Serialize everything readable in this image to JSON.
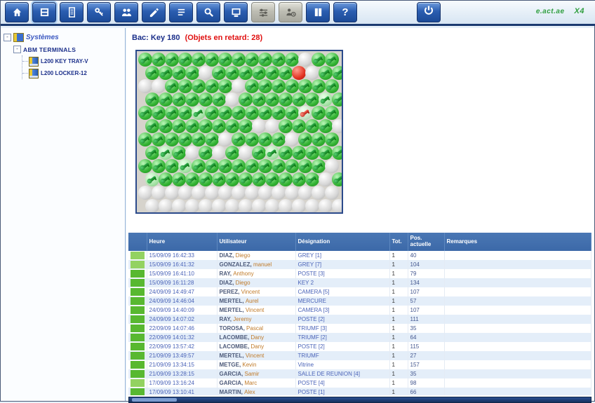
{
  "header": {
    "brand_left": "e.act.ae",
    "brand_right": "X4"
  },
  "toolbar": {
    "buttons": [
      {
        "name": "home-button",
        "icon": "home-icon",
        "active": false,
        "disabled": false
      },
      {
        "name": "cabinet-button",
        "icon": "cabinet-icon",
        "active": true,
        "disabled": false
      },
      {
        "name": "report-button",
        "icon": "report-icon",
        "active": false,
        "disabled": false
      },
      {
        "name": "key-button",
        "icon": "key-icon",
        "active": false,
        "disabled": false
      },
      {
        "name": "users-button",
        "icon": "users-icon",
        "active": false,
        "disabled": false
      },
      {
        "name": "edit-button",
        "icon": "pencil-icon",
        "active": false,
        "disabled": false
      },
      {
        "name": "list-button",
        "icon": "list-icon",
        "active": false,
        "disabled": false
      },
      {
        "name": "search-button",
        "icon": "search-icon",
        "active": false,
        "disabled": false
      },
      {
        "name": "terminal-button",
        "icon": "terminal-icon",
        "active": false,
        "disabled": false
      },
      {
        "name": "settings-button",
        "icon": "sliders-icon",
        "active": false,
        "disabled": true
      },
      {
        "name": "user-time-button",
        "icon": "user-clock-icon",
        "active": false,
        "disabled": true
      },
      {
        "name": "logbook-button",
        "icon": "book-icon",
        "active": false,
        "disabled": false
      },
      {
        "name": "help-button",
        "icon": "question-icon",
        "active": false,
        "disabled": false,
        "text": "?"
      }
    ],
    "logout": {
      "name": "logout-button",
      "icon": "power-icon"
    }
  },
  "sidebar": {
    "root_label": "Systèmes",
    "group_label": "ABM TERMINALS",
    "items": [
      {
        "label": "L200 KEY TRAY-V"
      },
      {
        "label": "L200 LOCKER-12"
      }
    ]
  },
  "main": {
    "title": "Bac: Key 180",
    "title_alert": "(Objets en retard: 28)"
  },
  "grid": {
    "legend": "G=clé présente, L=clé présente (claire), E=position vide, R=alarme, K=clé alarme",
    "colors": {
      "present": "#2fae2f",
      "present_light": "#9fe09f",
      "empty": "#c9c9c9",
      "alarm": "#e23222",
      "alarm_key": "#d43a2a"
    },
    "rows": [
      "GGGGGGGGGGGGEGG",
      "GGGGEGGGGGGREGG",
      "EEGGGGGEGGGGGGG",
      "GGGGGGEGGGGGGLG",
      "GGGGLGGGGGGGKGG",
      "GGGGGGGGEEGGGGE",
      "GGGGGGEGGGGEGGG",
      "GLGEGEGEGLGGGGG",
      "GGGLGGGGGGGGGGE",
      "LGGGGGGGGGGGGEG",
      "EEEEEEEEEEEEEEE",
      "EEEEEEEEEEEEEEE"
    ]
  },
  "table": {
    "headers": [
      "Heure",
      "Utilisateur",
      "Désignation",
      "Tot.",
      "Pos. actuelle",
      "Remarques"
    ],
    "rows": [
      {
        "status": "gl",
        "time": "15/09/09 16:42:33",
        "last": "DIAZ,",
        "first": "Diego",
        "des": "GREY [1]",
        "tot": "1",
        "pos": "40",
        "rem": ""
      },
      {
        "status": "gl",
        "time": "15/09/09 16:41:32",
        "last": "GONZALEZ,",
        "first": "manuel",
        "des": "GREY [7]",
        "tot": "1",
        "pos": "104",
        "rem": ""
      },
      {
        "status": "g",
        "time": "15/09/09 16:41:10",
        "last": "RAY,",
        "first": "Anthony",
        "des": "POSTE [3]",
        "tot": "1",
        "pos": "79",
        "rem": ""
      },
      {
        "status": "g",
        "time": "15/09/09 16:11:28",
        "last": "DIAZ,",
        "first": "Diego",
        "des": "KEY 2",
        "tot": "1",
        "pos": "134",
        "rem": ""
      },
      {
        "status": "g",
        "time": "24/09/09 14:49:47",
        "last": "PEREZ,",
        "first": "Vincent",
        "des": "CAMERA [5]",
        "tot": "1",
        "pos": "107",
        "rem": ""
      },
      {
        "status": "g",
        "time": "24/09/09 14:46:04",
        "last": "MERTEL,",
        "first": "Aurel",
        "des": "MERCURE",
        "tot": "1",
        "pos": "57",
        "rem": ""
      },
      {
        "status": "g",
        "time": "24/09/09 14:40:09",
        "last": "MERTEL,",
        "first": "Vincent",
        "des": "CAMERA [3]",
        "tot": "1",
        "pos": "107",
        "rem": ""
      },
      {
        "status": "g",
        "time": "24/09/09 14:07:02",
        "last": "RAY,",
        "first": "Jeremy",
        "des": "POSTE [2]",
        "tot": "1",
        "pos": "111",
        "rem": ""
      },
      {
        "status": "g",
        "time": "22/09/09 14:07:46",
        "last": "TOROSA,",
        "first": "Pascal",
        "des": "TRIUMF [3]",
        "tot": "1",
        "pos": "35",
        "rem": ""
      },
      {
        "status": "g",
        "time": "22/09/09 14:01:32",
        "last": "LACOMBE,",
        "first": "Dany",
        "des": "TRIUMF [2]",
        "tot": "1",
        "pos": "64",
        "rem": ""
      },
      {
        "status": "g",
        "time": "22/09/09 13:57:42",
        "last": "LACOMBE,",
        "first": "Dany",
        "des": "POSTE [2]",
        "tot": "1",
        "pos": "115",
        "rem": ""
      },
      {
        "status": "g",
        "time": "21/09/09 13:49:57",
        "last": "MERTEL,",
        "first": "Vincent",
        "des": "TRIUMF",
        "tot": "1",
        "pos": "27",
        "rem": ""
      },
      {
        "status": "g",
        "time": "21/09/09 13:34:15",
        "last": "METGE,",
        "first": "Kevin",
        "des": "Vitrine",
        "tot": "1",
        "pos": "157",
        "rem": ""
      },
      {
        "status": "g",
        "time": "21/09/09 13:28:15",
        "last": "GARCIA,",
        "first": "Samir",
        "des": "SALLE DE REUNION [4]",
        "tot": "1",
        "pos": "35",
        "rem": ""
      },
      {
        "status": "gl",
        "time": "17/09/09 13:16:24",
        "last": "GARCIA,",
        "first": "Marc",
        "des": "POSTE [4]",
        "tot": "1",
        "pos": "98",
        "rem": ""
      },
      {
        "status": "g",
        "time": "17/09/09 13:10:41",
        "last": "MARTIN,",
        "first": "Alex",
        "des": "POSTE [1]",
        "tot": "1",
        "pos": "66",
        "rem": ""
      }
    ]
  }
}
